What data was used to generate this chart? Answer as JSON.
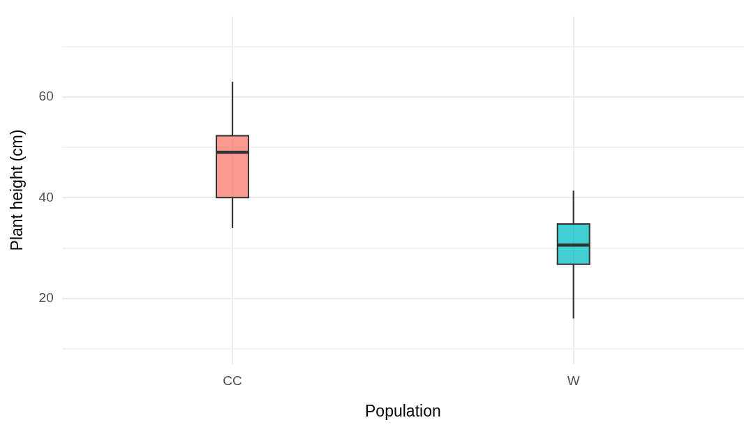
{
  "chart_data": {
    "type": "box",
    "xlabel": "Population",
    "ylabel": "Plant height (cm)",
    "categories": [
      "CC",
      "W"
    ],
    "colors": [
      "#f8766d",
      "#00bfc4"
    ],
    "boxes": [
      {
        "low": 34,
        "q1": 40,
        "median": 49,
        "q3": 52.3,
        "high": 63
      },
      {
        "low": 16,
        "q1": 26.8,
        "median": 30.6,
        "q3": 34.8,
        "high": 41.4
      }
    ],
    "ylim": [
      7,
      76
    ],
    "yticks": [
      {
        "value": 10,
        "label": null
      },
      20,
      {
        "value": 30,
        "label": null
      },
      40,
      {
        "value": 50,
        "label": null
      },
      60,
      {
        "value": 70,
        "label": null
      }
    ],
    "grid": true,
    "legend": false
  }
}
